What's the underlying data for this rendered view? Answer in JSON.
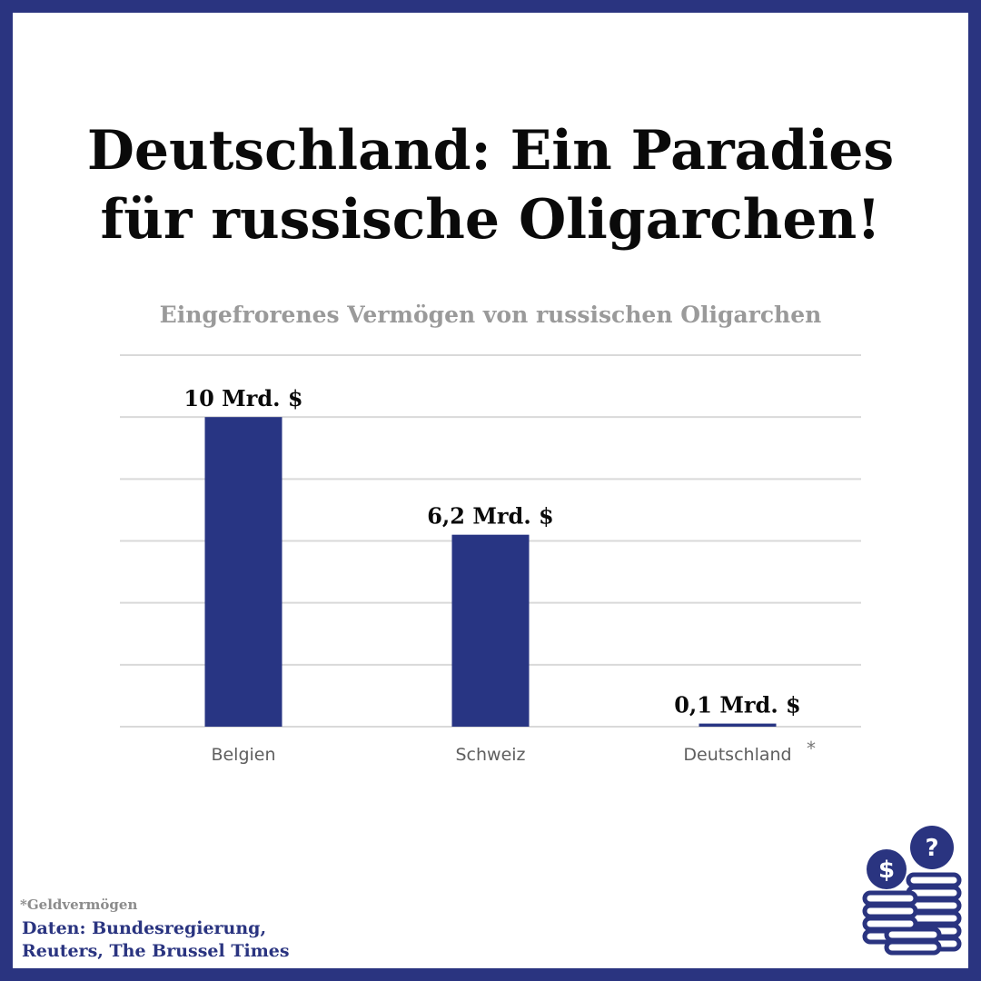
{
  "page": {
    "title_line1": "Deutschland: Ein Paradies",
    "title_line2": "für russische Oligarchen!",
    "footnote": "*Geldvermögen",
    "source_line1": "Daten: Bundesregierung,",
    "source_line2": "Reuters, The Brussel Times",
    "asterisk": "*",
    "icon": "coin-stacks-icon"
  },
  "colors": {
    "brand": "#2a3480",
    "bar": "#283583",
    "grid": "#d9d9d9"
  },
  "chart_data": {
    "type": "bar",
    "title": "Eingefrorenes Vermögen von russischen Oligarchen",
    "categories": [
      "Belgien",
      "Schweiz",
      "Deutschland"
    ],
    "values": [
      10,
      6.2,
      0.1
    ],
    "value_labels": [
      "10 Mrd. $",
      "6,2 Mrd. $",
      "0,1 Mrd. $"
    ],
    "unit": "Mrd. $",
    "ylim": [
      0,
      12
    ],
    "grid": true,
    "legend": "none"
  }
}
